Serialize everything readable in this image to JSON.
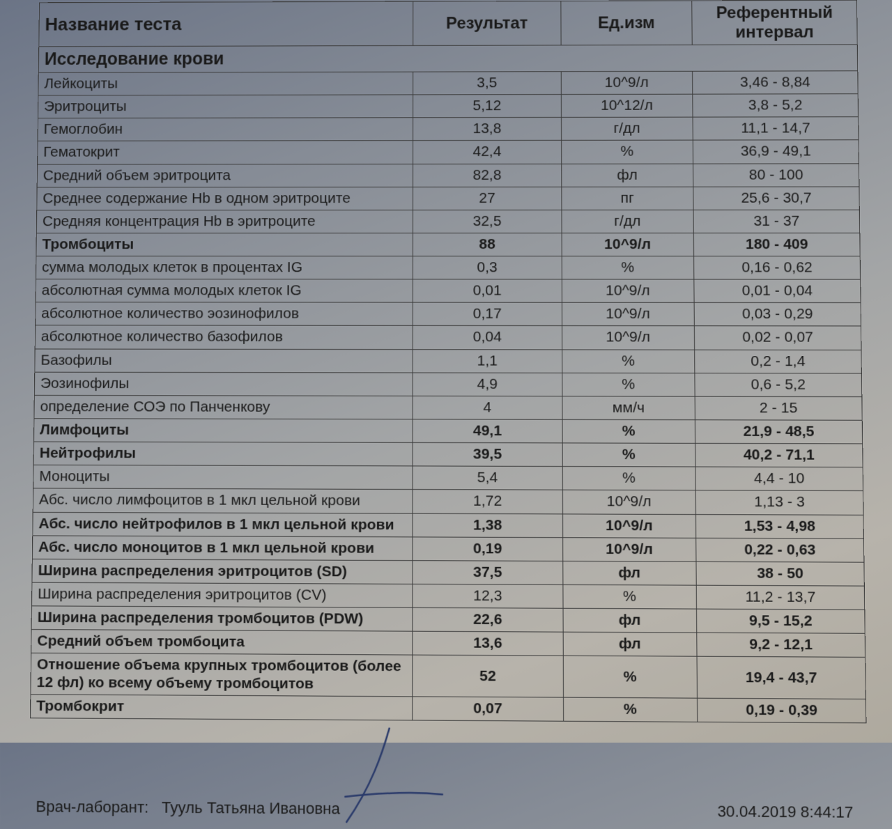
{
  "header": {
    "name": "Название теста",
    "result": "Результат",
    "unit": "Ед.изм",
    "ref": "Референтный интервал"
  },
  "section_title": "Исследование крови",
  "rows": [
    {
      "name": "Лейкоциты",
      "result": "3,5",
      "unit": "10^9/л",
      "ref": "3,46 - 8,84",
      "bold": false
    },
    {
      "name": "Эритроциты",
      "result": "5,12",
      "unit": "10^12/л",
      "ref": "3,8 - 5,2",
      "bold": false
    },
    {
      "name": "Гемоглобин",
      "result": "13,8",
      "unit": "г/дл",
      "ref": "11,1 - 14,7",
      "bold": false
    },
    {
      "name": "Гематокрит",
      "result": "42,4",
      "unit": "%",
      "ref": "36,9 - 49,1",
      "bold": false
    },
    {
      "name": "Средний объем эритроцита",
      "result": "82,8",
      "unit": "фл",
      "ref": "80 - 100",
      "bold": false
    },
    {
      "name": "Среднее содержание Hb в одном эритроците",
      "result": "27",
      "unit": "пг",
      "ref": "25,6 - 30,7",
      "bold": false
    },
    {
      "name": "Средняя концентрация Hb в эритроците",
      "result": "32,5",
      "unit": "г/дл",
      "ref": "31 - 37",
      "bold": false
    },
    {
      "name": "Тромбоциты",
      "result": "88",
      "unit": "10^9/л",
      "ref": "180 - 409",
      "bold": true
    },
    {
      "name": "сумма молодых клеток в процентах IG",
      "result": "0,3",
      "unit": "%",
      "ref": "0,16 - 0,62",
      "bold": false
    },
    {
      "name": "абсолютная сумма молодых клеток IG",
      "result": "0,01",
      "unit": "10^9/л",
      "ref": "0,01 - 0,04",
      "bold": false
    },
    {
      "name": "абсолютное количество эозинофилов",
      "result": "0,17",
      "unit": "10^9/л",
      "ref": "0,03 - 0,29",
      "bold": false
    },
    {
      "name": "абсолютное количество базофилов",
      "result": "0,04",
      "unit": "10^9/л",
      "ref": "0,02 - 0,07",
      "bold": false
    },
    {
      "name": "Базофилы",
      "result": "1,1",
      "unit": "%",
      "ref": "0,2 - 1,4",
      "bold": false
    },
    {
      "name": "Эозинофилы",
      "result": "4,9",
      "unit": "%",
      "ref": "0,6 - 5,2",
      "bold": false
    },
    {
      "name": "определение СОЭ по Панченкову",
      "result": "4",
      "unit": "мм/ч",
      "ref": "2 - 15",
      "bold": false
    },
    {
      "name": "Лимфоциты",
      "result": "49,1",
      "unit": "%",
      "ref": "21,9 - 48,5",
      "bold": true
    },
    {
      "name": "Нейтрофилы",
      "result": "39,5",
      "unit": "%",
      "ref": "40,2 - 71,1",
      "bold": true
    },
    {
      "name": "Моноциты",
      "result": "5,4",
      "unit": "%",
      "ref": "4,4 - 10",
      "bold": false
    },
    {
      "name": "Абс. число лимфоцитов в 1 мкл цельной крови",
      "result": "1,72",
      "unit": "10^9/л",
      "ref": "1,13 - 3",
      "bold": false
    },
    {
      "name": "Абс. число нейтрофилов в 1 мкл цельной крови",
      "result": "1,38",
      "unit": "10^9/л",
      "ref": "1,53 - 4,98",
      "bold": true
    },
    {
      "name": "Абс. число моноцитов в 1 мкл цельной крови",
      "result": "0,19",
      "unit": "10^9/л",
      "ref": "0,22 - 0,63",
      "bold": true
    },
    {
      "name": "Ширина распределения эритроцитов (SD)",
      "result": "37,5",
      "unit": "фл",
      "ref": "38 - 50",
      "bold": true
    },
    {
      "name": "Ширина распределения эритроцитов (CV)",
      "result": "12,3",
      "unit": "%",
      "ref": "11,2 - 13,7",
      "bold": false
    },
    {
      "name": "Ширина распределения тромбоцитов (PDW)",
      "result": "22,6",
      "unit": "фл",
      "ref": "9,5 - 15,2",
      "bold": true
    },
    {
      "name": "Средний объем тромбоцита",
      "result": "13,6",
      "unit": "фл",
      "ref": "9,2 - 12,1",
      "bold": true
    },
    {
      "name": "Отношение объема крупных тромбоцитов (более 12 фл) ко всему объему тромбоцитов",
      "result": "52",
      "unit": "%",
      "ref": "19,4 - 43,7",
      "bold": true
    },
    {
      "name": "Тромбокрит",
      "result": "0,07",
      "unit": "%",
      "ref": "0,19 - 0,39",
      "bold": true
    }
  ],
  "footer": {
    "doctor_label": "Врач-лаборант:",
    "doctor_name": "Тууль Татьяна Ивановна",
    "timestamp": "30.04.2019 8:44:17"
  },
  "style": {
    "type": "table",
    "columns": [
      "Название теста",
      "Результат",
      "Ед.изм",
      "Референтный интервал"
    ],
    "col_align": [
      "left",
      "center",
      "center",
      "center"
    ],
    "col_width_pct": [
      46,
      18,
      16,
      20
    ],
    "border_color": "#3a3a3a",
    "text_color": "#1a1a1a",
    "header_fontsize_pt": 18,
    "body_fontsize_pt": 16,
    "footer_fontsize_pt": 16,
    "font_family": "Arial",
    "background_gradient": [
      "#6b7486",
      "#868c96",
      "#a3a5a6",
      "#b7b3ab",
      "#aea99e"
    ],
    "signature_color": "#2a3a6a"
  }
}
